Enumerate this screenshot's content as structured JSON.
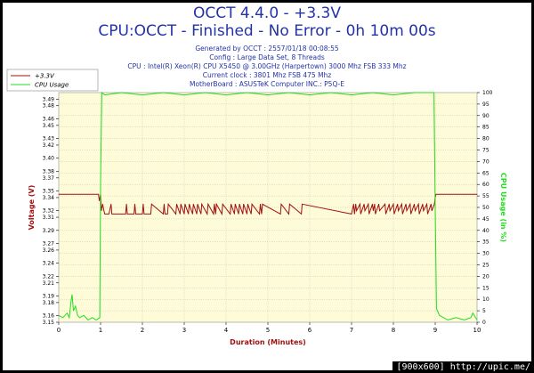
{
  "header": {
    "title": "OCCT 4.4.0 - +3.3V",
    "subtitle": "CPU:OCCT - Finished - No Error - 0h 10m 00s",
    "info_lines": [
      "Generated by OCCT : 2557/01/18 00:08:55",
      "Config : Large Data Set, 8 Threads",
      "CPU : Intel(R) Xeon(R) CPU X5450 @ 3.00GHz (Harpertown) 3000 Mhz FSB 333 Mhz",
      "Current clock : 3801 Mhz FSB 475 Mhz",
      "MotherBoard : ASUSTeK Computer INC.: P5Q-E"
    ]
  },
  "footer": {
    "credit": "[900x600] http://upic.me/"
  },
  "colors": {
    "voltage": "#a01010",
    "cpu_usage": "#22dd22",
    "title": "#2233aa",
    "plot_bg": "#fdfbd8",
    "grid": "#c8c8b0"
  },
  "chart_data": {
    "type": "line",
    "xlabel": "Duration (Minutes)",
    "ylabel": "Voltage (V)",
    "y2label": "CPU Usage (in %)",
    "xlim": [
      0,
      10
    ],
    "ylim": [
      3.15,
      3.5
    ],
    "y2lim": [
      0,
      100
    ],
    "x_ticks": [
      0,
      1,
      2,
      3,
      4,
      5,
      6,
      7,
      8,
      9,
      10
    ],
    "y_ticks": [
      3.15,
      3.16,
      3.18,
      3.19,
      3.21,
      3.22,
      3.24,
      3.26,
      3.27,
      3.29,
      3.31,
      3.32,
      3.34,
      3.35,
      3.37,
      3.38,
      3.4,
      3.42,
      3.43,
      3.45,
      3.46,
      3.48,
      3.49,
      3.51
    ],
    "y2_ticks": [
      0,
      5,
      10,
      15,
      20,
      25,
      30,
      35,
      40,
      45,
      50,
      55,
      60,
      65,
      70,
      75,
      80,
      85,
      90,
      95,
      100
    ],
    "grid": true,
    "legend": {
      "placement": "top-left",
      "entries": [
        "+3.3V",
        "CPU Usage"
      ]
    },
    "series": [
      {
        "name": "+3.3V",
        "axis": "left",
        "x": [
          0,
          0.95,
          0.97,
          1.0,
          1.02,
          1.05,
          1.08,
          1.1,
          1.2,
          1.25,
          1.27,
          1.5,
          1.6,
          1.62,
          1.64,
          1.8,
          1.82,
          1.84,
          2.0,
          2.02,
          2.04,
          2.2,
          2.22,
          2.5,
          2.52,
          2.54,
          2.6,
          2.62,
          2.8,
          2.82,
          2.9,
          2.92,
          3.0,
          3.02,
          3.1,
          3.12,
          3.2,
          3.22,
          3.3,
          3.32,
          3.4,
          3.42,
          3.55,
          3.57,
          3.7,
          3.72,
          3.75,
          3.77,
          3.9,
          3.92,
          4.1,
          4.12,
          4.2,
          4.22,
          4.3,
          4.32,
          4.4,
          4.42,
          4.5,
          4.52,
          4.6,
          4.62,
          4.8,
          4.82,
          4.85,
          4.87,
          5.3,
          5.32,
          5.5,
          5.52,
          5.8,
          5.82,
          7.0,
          7.05,
          7.07,
          7.1,
          7.12,
          7.2,
          7.22,
          7.3,
          7.32,
          7.4,
          7.42,
          7.5,
          7.52,
          7.55,
          7.57,
          7.65,
          7.67,
          7.8,
          7.82,
          7.9,
          7.92,
          8.0,
          8.02,
          8.1,
          8.12,
          8.2,
          8.22,
          8.3,
          8.32,
          8.4,
          8.42,
          8.5,
          8.52,
          8.6,
          8.62,
          8.7,
          8.72,
          8.8,
          8.82,
          8.9,
          8.92,
          8.98,
          9.0,
          9.02,
          10.0
        ],
        "y": [
          3.345,
          3.345,
          3.335,
          3.345,
          3.32,
          3.33,
          3.32,
          3.315,
          3.315,
          3.33,
          3.315,
          3.315,
          3.315,
          3.33,
          3.315,
          3.315,
          3.33,
          3.315,
          3.315,
          3.33,
          3.315,
          3.315,
          3.33,
          3.315,
          3.33,
          3.315,
          3.315,
          3.33,
          3.315,
          3.33,
          3.315,
          3.33,
          3.315,
          3.33,
          3.315,
          3.33,
          3.315,
          3.33,
          3.315,
          3.33,
          3.315,
          3.33,
          3.315,
          3.33,
          3.315,
          3.33,
          3.315,
          3.33,
          3.315,
          3.33,
          3.315,
          3.33,
          3.315,
          3.33,
          3.315,
          3.33,
          3.315,
          3.33,
          3.315,
          3.33,
          3.315,
          3.33,
          3.315,
          3.33,
          3.315,
          3.33,
          3.315,
          3.33,
          3.315,
          3.33,
          3.315,
          3.33,
          3.315,
          3.33,
          3.315,
          3.33,
          3.32,
          3.33,
          3.315,
          3.33,
          3.32,
          3.33,
          3.315,
          3.33,
          3.32,
          3.33,
          3.315,
          3.33,
          3.32,
          3.33,
          3.315,
          3.33,
          3.32,
          3.33,
          3.315,
          3.33,
          3.32,
          3.33,
          3.315,
          3.33,
          3.32,
          3.33,
          3.315,
          3.33,
          3.32,
          3.33,
          3.315,
          3.33,
          3.32,
          3.33,
          3.315,
          3.33,
          3.32,
          3.33,
          3.34,
          3.345,
          3.345
        ]
      },
      {
        "name": "CPU Usage",
        "axis": "right",
        "x": [
          0,
          0.1,
          0.2,
          0.25,
          0.3,
          0.32,
          0.35,
          0.4,
          0.45,
          0.5,
          0.6,
          0.7,
          0.8,
          0.9,
          0.98,
          1.0,
          1.03,
          1.1,
          1.5,
          2.0,
          2.5,
          3.0,
          3.5,
          4.0,
          4.5,
          5.0,
          5.5,
          6.0,
          6.5,
          7.0,
          7.5,
          8.0,
          8.5,
          8.97,
          9.0,
          9.03,
          9.1,
          9.2,
          9.3,
          9.5,
          9.7,
          9.85,
          9.9,
          10.0
        ],
        "y": [
          3,
          2,
          4,
          2,
          10,
          12,
          5,
          7,
          3,
          2,
          3,
          1,
          2,
          1,
          2,
          60,
          100,
          99,
          100,
          99,
          100,
          99,
          100,
          99,
          100,
          99,
          100,
          99,
          100,
          99,
          100,
          99,
          100,
          100,
          50,
          6,
          3,
          2,
          1,
          2,
          1,
          2,
          4,
          1
        ]
      }
    ]
  }
}
